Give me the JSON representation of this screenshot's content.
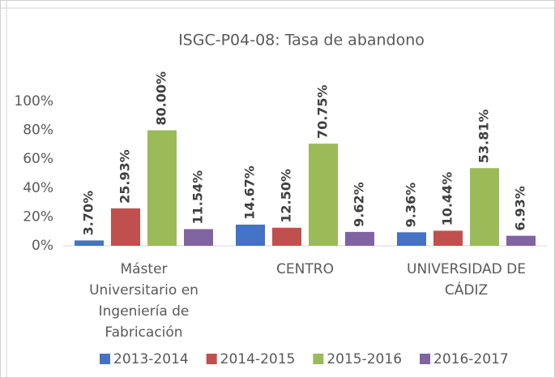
{
  "chart_data": {
    "type": "bar",
    "title": "ISGC-P04-08: Tasa de abandono",
    "categories": [
      "Máster Universitario en Ingeniería de Fabricación",
      "CENTRO",
      "UNIVERSIDAD DE CÁDIZ"
    ],
    "series": [
      {
        "name": "2013-2014",
        "color": "#4472c4",
        "values": [
          3.7,
          14.67,
          9.36
        ],
        "value_labels": [
          "3.70%",
          "14.67%",
          "9.36%"
        ]
      },
      {
        "name": "2014-2015",
        "color": "#c0504d",
        "values": [
          25.93,
          12.5,
          10.44
        ],
        "value_labels": [
          "25.93%",
          "12.50%",
          "10.44%"
        ]
      },
      {
        "name": "2015-2016",
        "color": "#9bbb59",
        "values": [
          80,
          70.75,
          53.81
        ],
        "value_labels": [
          "80.00%",
          "70.75%",
          "53.81%"
        ]
      },
      {
        "name": "2016-2017",
        "color": "#8064a2",
        "values": [
          11.54,
          9.62,
          6.93
        ],
        "value_labels": [
          "11.54%",
          "9.62%",
          "6.93%"
        ]
      }
    ],
    "ylim": [
      0,
      100
    ],
    "yticks": [
      {
        "value": 0,
        "label": "0%"
      },
      {
        "value": 20,
        "label": "20%"
      },
      {
        "value": 40,
        "label": "40%"
      },
      {
        "value": 60,
        "label": "60%"
      },
      {
        "value": 80,
        "label": "80%"
      },
      {
        "value": 100,
        "label": "100%"
      }
    ],
    "grid": false,
    "legend": "bottom"
  }
}
